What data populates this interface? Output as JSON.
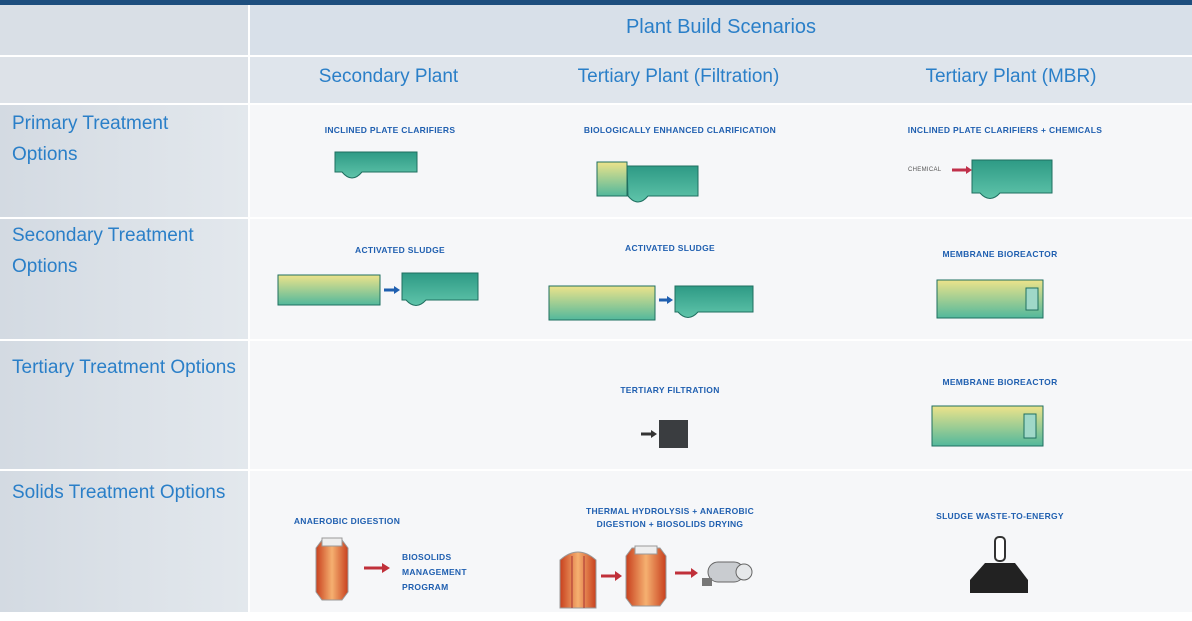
{
  "header": {
    "title": "Plant Build Scenarios",
    "columns": [
      "Secondary Plant",
      "Tertiary Plant (Filtration)",
      "Tertiary Plant (MBR)"
    ]
  },
  "rows": [
    {
      "label": "Primary Treatment Options",
      "cells": [
        [
          "INCLINED PLATE CLARIFIERS"
        ],
        [
          "BIOLOGICALLY ENHANCED CLARIFICATION"
        ],
        [
          "INCLINED PLATE CLARIFIERS + CHEMICALS",
          "CHEMICAL"
        ]
      ]
    },
    {
      "label": "Secondary Treatment Options",
      "cells": [
        [
          "ACTIVATED SLUDGE"
        ],
        [
          "ACTIVATED SLUDGE"
        ],
        [
          "MEMBRANE BIOREACTOR"
        ]
      ]
    },
    {
      "label": "Tertiary Treatment Options",
      "cells": [
        [],
        [
          "TERTIARY FILTRATION"
        ],
        [
          "MEMBRANE BIOREACTOR"
        ]
      ]
    },
    {
      "label": "Solids Treatment Options",
      "cells": [
        [
          "ANAEROBIC DIGESTION",
          "BIOSOLIDS MANAGEMENT PROGRAM"
        ],
        [
          "THERMAL HYDROLYSIS + ANAEROBIC DIGESTION + BIOSOLIDS DRYING"
        ],
        [
          "SLUDGE WASTE-TO-ENERGY"
        ]
      ]
    }
  ]
}
